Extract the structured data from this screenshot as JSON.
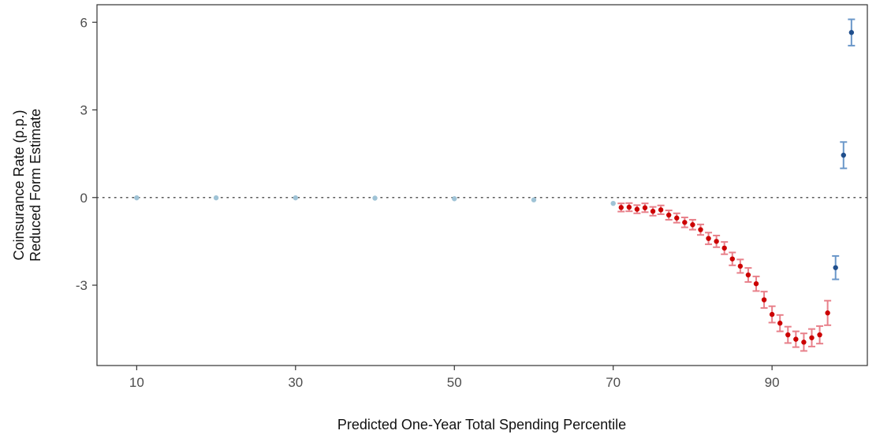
{
  "chart_data": {
    "type": "scatter",
    "title": "",
    "xlabel": "Predicted One-Year Total Spending Percentile",
    "ylabel_lines": [
      "Coinsurance Rate (p.p.)",
      "Reduced Form Estimate"
    ],
    "xlim": [
      5,
      102
    ],
    "ylim": [
      -5.75,
      6.6
    ],
    "x_ticks": [
      10,
      30,
      50,
      70,
      90
    ],
    "y_ticks": [
      6,
      3,
      0,
      -3
    ],
    "y_tick_labels": [
      "6",
      "3",
      "0",
      "-3"
    ],
    "reference_line": {
      "y": 0,
      "style": "dotted",
      "color": "#555555"
    },
    "grid": false,
    "legend": "none",
    "colors": {
      "light_blue": "#9fc3d6",
      "red_point": "#cc0000",
      "red_error": "#e8808a",
      "blue_point": "#1f4e8c",
      "blue_error": "#6a97c9"
    },
    "series": [
      {
        "color_key": "light_blue",
        "points": [
          {
            "x": 10,
            "y": -0.01
          },
          {
            "x": 20,
            "y": -0.01
          },
          {
            "x": 30,
            "y": -0.01
          },
          {
            "x": 40,
            "y": -0.02
          },
          {
            "x": 50,
            "y": -0.04
          },
          {
            "x": 60,
            "y": -0.08
          },
          {
            "x": 70,
            "y": -0.2
          }
        ]
      },
      {
        "color_key": "red",
        "points": [
          {
            "x": 71,
            "y": -0.34,
            "lo": -0.48,
            "hi": -0.2
          },
          {
            "x": 72,
            "y": -0.33,
            "lo": -0.47,
            "hi": -0.19
          },
          {
            "x": 73,
            "y": -0.4,
            "lo": -0.54,
            "hi": -0.26
          },
          {
            "x": 74,
            "y": -0.35,
            "lo": -0.5,
            "hi": -0.2
          },
          {
            "x": 75,
            "y": -0.47,
            "lo": -0.62,
            "hi": -0.32
          },
          {
            "x": 76,
            "y": -0.42,
            "lo": -0.57,
            "hi": -0.27
          },
          {
            "x": 77,
            "y": -0.6,
            "lo": -0.76,
            "hi": -0.44
          },
          {
            "x": 78,
            "y": -0.7,
            "lo": -0.86,
            "hi": -0.54
          },
          {
            "x": 79,
            "y": -0.85,
            "lo": -1.02,
            "hi": -0.68
          },
          {
            "x": 80,
            "y": -0.93,
            "lo": -1.1,
            "hi": -0.76
          },
          {
            "x": 81,
            "y": -1.1,
            "lo": -1.28,
            "hi": -0.92
          },
          {
            "x": 82,
            "y": -1.4,
            "lo": -1.6,
            "hi": -1.2
          },
          {
            "x": 83,
            "y": -1.5,
            "lo": -1.7,
            "hi": -1.3
          },
          {
            "x": 84,
            "y": -1.73,
            "lo": -1.94,
            "hi": -1.52
          },
          {
            "x": 85,
            "y": -2.1,
            "lo": -2.32,
            "hi": -1.88
          },
          {
            "x": 86,
            "y": -2.35,
            "lo": -2.58,
            "hi": -2.12
          },
          {
            "x": 87,
            "y": -2.65,
            "lo": -2.89,
            "hi": -2.41
          },
          {
            "x": 88,
            "y": -2.95,
            "lo": -3.2,
            "hi": -2.7
          },
          {
            "x": 89,
            "y": -3.5,
            "lo": -3.78,
            "hi": -3.22
          },
          {
            "x": 90,
            "y": -4.0,
            "lo": -4.28,
            "hi": -3.72
          },
          {
            "x": 91,
            "y": -4.3,
            "lo": -4.58,
            "hi": -4.02
          },
          {
            "x": 92,
            "y": -4.7,
            "lo": -4.98,
            "hi": -4.42
          },
          {
            "x": 93,
            "y": -4.85,
            "lo": -5.12,
            "hi": -4.58
          },
          {
            "x": 94,
            "y": -4.95,
            "lo": -5.25,
            "hi": -4.65
          },
          {
            "x": 95,
            "y": -4.8,
            "lo": -5.1,
            "hi": -4.5
          },
          {
            "x": 96,
            "y": -4.7,
            "lo": -5.0,
            "hi": -4.4
          },
          {
            "x": 97,
            "y": -3.95,
            "lo": -4.37,
            "hi": -3.53
          }
        ]
      },
      {
        "color_key": "blue",
        "points": [
          {
            "x": 98,
            "y": -2.4,
            "lo": -2.8,
            "hi": -2.0
          },
          {
            "x": 99,
            "y": 1.45,
            "lo": 1.0,
            "hi": 1.9
          },
          {
            "x": 100,
            "y": 5.65,
            "lo": 5.2,
            "hi": 6.1
          }
        ]
      }
    ]
  }
}
